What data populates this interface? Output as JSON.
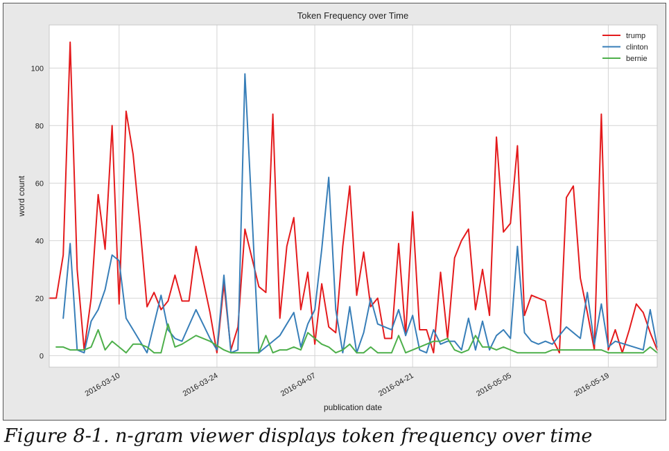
{
  "caption": "Figure 8-1. n-gram viewer displays token frequency over time",
  "chart_data": {
    "type": "line",
    "title": "Token Frequency over Time",
    "xlabel": "publication date",
    "ylabel": "word count",
    "x_start": "2016-02-29",
    "x_end": "2016-05-26",
    "ylim": [
      -4,
      115
    ],
    "yticks": [
      0,
      20,
      40,
      60,
      80,
      100
    ],
    "xticks": [
      {
        "date": "2016-03-10",
        "label": "2016-03-10"
      },
      {
        "date": "2016-03-24",
        "label": "2016-03-24"
      },
      {
        "date": "2016-04-07",
        "label": "2016-04-07"
      },
      {
        "date": "2016-04-21",
        "label": "2016-04-21"
      },
      {
        "date": "2016-05-05",
        "label": "2016-05-05"
      },
      {
        "date": "2016-05-19",
        "label": "2016-05-19"
      }
    ],
    "grid": true,
    "legend": "top-right",
    "series": [
      {
        "name": "trump",
        "color": "#e41a1c",
        "points": [
          [
            "2016-02-29",
            20
          ],
          [
            "2016-03-01",
            20
          ],
          [
            "2016-03-02",
            35
          ],
          [
            "2016-03-03",
            109
          ],
          [
            "2016-03-04",
            30
          ],
          [
            "2016-03-05",
            2
          ],
          [
            "2016-03-06",
            20
          ],
          [
            "2016-03-07",
            56
          ],
          [
            "2016-03-08",
            37
          ],
          [
            "2016-03-09",
            80
          ],
          [
            "2016-03-10",
            18
          ],
          [
            "2016-03-11",
            85
          ],
          [
            "2016-03-12",
            70
          ],
          [
            "2016-03-13",
            45
          ],
          [
            "2016-03-14",
            17
          ],
          [
            "2016-03-15",
            22
          ],
          [
            "2016-03-16",
            16
          ],
          [
            "2016-03-17",
            19
          ],
          [
            "2016-03-18",
            28
          ],
          [
            "2016-03-19",
            19
          ],
          [
            "2016-03-20",
            19
          ],
          [
            "2016-03-21",
            38
          ],
          [
            "2016-03-23",
            15
          ],
          [
            "2016-03-24",
            1
          ],
          [
            "2016-03-25",
            25
          ],
          [
            "2016-03-26",
            2
          ],
          [
            "2016-03-27",
            10
          ],
          [
            "2016-03-28",
            44
          ],
          [
            "2016-03-30",
            24
          ],
          [
            "2016-03-31",
            22
          ],
          [
            "2016-04-01",
            84
          ],
          [
            "2016-04-02",
            13
          ],
          [
            "2016-04-03",
            38
          ],
          [
            "2016-04-04",
            48
          ],
          [
            "2016-04-05",
            16
          ],
          [
            "2016-04-06",
            29
          ],
          [
            "2016-04-07",
            4
          ],
          [
            "2016-04-08",
            25
          ],
          [
            "2016-04-09",
            10
          ],
          [
            "2016-04-10",
            8
          ],
          [
            "2016-04-11",
            38
          ],
          [
            "2016-04-12",
            59
          ],
          [
            "2016-04-13",
            21
          ],
          [
            "2016-04-14",
            36
          ],
          [
            "2016-04-15",
            17
          ],
          [
            "2016-04-16",
            20
          ],
          [
            "2016-04-17",
            6
          ],
          [
            "2016-04-18",
            6
          ],
          [
            "2016-04-19",
            39
          ],
          [
            "2016-04-20",
            7
          ],
          [
            "2016-04-21",
            50
          ],
          [
            "2016-04-22",
            9
          ],
          [
            "2016-04-23",
            9
          ],
          [
            "2016-04-24",
            1
          ],
          [
            "2016-04-25",
            29
          ],
          [
            "2016-04-26",
            6
          ],
          [
            "2016-04-27",
            34
          ],
          [
            "2016-04-28",
            40
          ],
          [
            "2016-04-29",
            44
          ],
          [
            "2016-04-30",
            16
          ],
          [
            "2016-05-01",
            30
          ],
          [
            "2016-05-02",
            14
          ],
          [
            "2016-05-03",
            76
          ],
          [
            "2016-05-04",
            43
          ],
          [
            "2016-05-05",
            46
          ],
          [
            "2016-05-06",
            73
          ],
          [
            "2016-05-07",
            14
          ],
          [
            "2016-05-08",
            21
          ],
          [
            "2016-05-10",
            19
          ],
          [
            "2016-05-11",
            6
          ],
          [
            "2016-05-12",
            1
          ],
          [
            "2016-05-13",
            55
          ],
          [
            "2016-05-14",
            59
          ],
          [
            "2016-05-15",
            27
          ],
          [
            "2016-05-16",
            15
          ],
          [
            "2016-05-17",
            2
          ],
          [
            "2016-05-18",
            84
          ],
          [
            "2016-05-19",
            2
          ],
          [
            "2016-05-20",
            9
          ],
          [
            "2016-05-21",
            1
          ],
          [
            "2016-05-22",
            9
          ],
          [
            "2016-05-23",
            18
          ],
          [
            "2016-05-24",
            15
          ],
          [
            "2016-05-25",
            8
          ],
          [
            "2016-05-26",
            2
          ]
        ]
      },
      {
        "name": "clinton",
        "color": "#377eb8",
        "points": [
          [
            "2016-03-02",
            13
          ],
          [
            "2016-03-03",
            39
          ],
          [
            "2016-03-04",
            2
          ],
          [
            "2016-03-05",
            1
          ],
          [
            "2016-03-06",
            12
          ],
          [
            "2016-03-07",
            16
          ],
          [
            "2016-03-08",
            23
          ],
          [
            "2016-03-09",
            35
          ],
          [
            "2016-03-10",
            33
          ],
          [
            "2016-03-11",
            13
          ],
          [
            "2016-03-12",
            9
          ],
          [
            "2016-03-13",
            5
          ],
          [
            "2016-03-14",
            1
          ],
          [
            "2016-03-15",
            11
          ],
          [
            "2016-03-16",
            21
          ],
          [
            "2016-03-17",
            9
          ],
          [
            "2016-03-18",
            6
          ],
          [
            "2016-03-19",
            5
          ],
          [
            "2016-03-21",
            16
          ],
          [
            "2016-03-22",
            11
          ],
          [
            "2016-03-23",
            6
          ],
          [
            "2016-03-24",
            2
          ],
          [
            "2016-03-25",
            28
          ],
          [
            "2016-03-26",
            1
          ],
          [
            "2016-03-27",
            2
          ],
          [
            "2016-03-28",
            98
          ],
          [
            "2016-03-29",
            50
          ],
          [
            "2016-03-30",
            1
          ],
          [
            "2016-03-31",
            3
          ],
          [
            "2016-04-01",
            5
          ],
          [
            "2016-04-02",
            7
          ],
          [
            "2016-04-03",
            11
          ],
          [
            "2016-04-04",
            15
          ],
          [
            "2016-04-05",
            3
          ],
          [
            "2016-04-06",
            11
          ],
          [
            "2016-04-07",
            16
          ],
          [
            "2016-04-08",
            37
          ],
          [
            "2016-04-09",
            62
          ],
          [
            "2016-04-10",
            16
          ],
          [
            "2016-04-11",
            1
          ],
          [
            "2016-04-12",
            17
          ],
          [
            "2016-04-13",
            1
          ],
          [
            "2016-04-14",
            8
          ],
          [
            "2016-04-15",
            20
          ],
          [
            "2016-04-16",
            11
          ],
          [
            "2016-04-17",
            10
          ],
          [
            "2016-04-18",
            9
          ],
          [
            "2016-04-19",
            16
          ],
          [
            "2016-04-20",
            7
          ],
          [
            "2016-04-21",
            14
          ],
          [
            "2016-04-22",
            2
          ],
          [
            "2016-04-23",
            1
          ],
          [
            "2016-04-24",
            9
          ],
          [
            "2016-04-25",
            4
          ],
          [
            "2016-04-26",
            5
          ],
          [
            "2016-04-27",
            5
          ],
          [
            "2016-04-28",
            2
          ],
          [
            "2016-04-29",
            13
          ],
          [
            "2016-04-30",
            2
          ],
          [
            "2016-05-01",
            12
          ],
          [
            "2016-05-02",
            2
          ],
          [
            "2016-05-03",
            7
          ],
          [
            "2016-05-04",
            9
          ],
          [
            "2016-05-05",
            6
          ],
          [
            "2016-05-06",
            38
          ],
          [
            "2016-05-07",
            8
          ],
          [
            "2016-05-08",
            5
          ],
          [
            "2016-05-09",
            4
          ],
          [
            "2016-05-10",
            5
          ],
          [
            "2016-05-11",
            4
          ],
          [
            "2016-05-12",
            7
          ],
          [
            "2016-05-13",
            10
          ],
          [
            "2016-05-14",
            8
          ],
          [
            "2016-05-15",
            6
          ],
          [
            "2016-05-16",
            22
          ],
          [
            "2016-05-17",
            4
          ],
          [
            "2016-05-18",
            18
          ],
          [
            "2016-05-19",
            3
          ],
          [
            "2016-05-20",
            5
          ],
          [
            "2016-05-24",
            2
          ],
          [
            "2016-05-25",
            16
          ],
          [
            "2016-05-26",
            3
          ]
        ]
      },
      {
        "name": "bernie",
        "color": "#4daf4a",
        "points": [
          [
            "2016-03-01",
            3
          ],
          [
            "2016-03-02",
            3
          ],
          [
            "2016-03-03",
            2
          ],
          [
            "2016-03-04",
            2
          ],
          [
            "2016-03-05",
            2
          ],
          [
            "2016-03-06",
            3
          ],
          [
            "2016-03-07",
            9
          ],
          [
            "2016-03-08",
            2
          ],
          [
            "2016-03-09",
            5
          ],
          [
            "2016-03-10",
            3
          ],
          [
            "2016-03-11",
            1
          ],
          [
            "2016-03-12",
            4
          ],
          [
            "2016-03-13",
            4
          ],
          [
            "2016-03-14",
            3
          ],
          [
            "2016-03-15",
            1
          ],
          [
            "2016-03-16",
            1
          ],
          [
            "2016-03-17",
            11
          ],
          [
            "2016-03-18",
            3
          ],
          [
            "2016-03-19",
            4
          ],
          [
            "2016-03-21",
            7
          ],
          [
            "2016-03-23",
            5
          ],
          [
            "2016-03-25",
            2
          ],
          [
            "2016-03-26",
            1
          ],
          [
            "2016-03-27",
            1
          ],
          [
            "2016-03-28",
            1
          ],
          [
            "2016-03-29",
            1
          ],
          [
            "2016-03-30",
            1
          ],
          [
            "2016-03-31",
            7
          ],
          [
            "2016-04-01",
            1
          ],
          [
            "2016-04-02",
            2
          ],
          [
            "2016-04-03",
            2
          ],
          [
            "2016-04-04",
            3
          ],
          [
            "2016-04-05",
            2
          ],
          [
            "2016-04-06",
            8
          ],
          [
            "2016-04-07",
            6
          ],
          [
            "2016-04-08",
            4
          ],
          [
            "2016-04-09",
            3
          ],
          [
            "2016-04-10",
            1
          ],
          [
            "2016-04-11",
            2
          ],
          [
            "2016-04-12",
            4
          ],
          [
            "2016-04-13",
            1
          ],
          [
            "2016-04-14",
            1
          ],
          [
            "2016-04-15",
            3
          ],
          [
            "2016-04-16",
            1
          ],
          [
            "2016-04-17",
            1
          ],
          [
            "2016-04-18",
            1
          ],
          [
            "2016-04-19",
            7
          ],
          [
            "2016-04-20",
            1
          ],
          [
            "2016-04-21",
            2
          ],
          [
            "2016-04-22",
            3
          ],
          [
            "2016-04-23",
            4
          ],
          [
            "2016-04-24",
            5
          ],
          [
            "2016-04-25",
            5
          ],
          [
            "2016-04-26",
            6
          ],
          [
            "2016-04-27",
            2
          ],
          [
            "2016-04-28",
            1
          ],
          [
            "2016-04-29",
            2
          ],
          [
            "2016-04-30",
            7
          ],
          [
            "2016-05-01",
            3
          ],
          [
            "2016-05-02",
            3
          ],
          [
            "2016-05-03",
            2
          ],
          [
            "2016-05-04",
            3
          ],
          [
            "2016-05-05",
            2
          ],
          [
            "2016-05-06",
            1
          ],
          [
            "2016-05-07",
            1
          ],
          [
            "2016-05-08",
            1
          ],
          [
            "2016-05-09",
            1
          ],
          [
            "2016-05-10",
            1
          ],
          [
            "2016-05-11",
            2
          ],
          [
            "2016-05-12",
            2
          ],
          [
            "2016-05-13",
            2
          ],
          [
            "2016-05-14",
            2
          ],
          [
            "2016-05-15",
            2
          ],
          [
            "2016-05-16",
            2
          ],
          [
            "2016-05-17",
            2
          ],
          [
            "2016-05-18",
            2
          ],
          [
            "2016-05-19",
            1
          ],
          [
            "2016-05-20",
            1
          ],
          [
            "2016-05-21",
            1
          ],
          [
            "2016-05-22",
            1
          ],
          [
            "2016-05-23",
            1
          ],
          [
            "2016-05-24",
            1
          ],
          [
            "2016-05-25",
            3
          ],
          [
            "2016-05-26",
            1
          ]
        ]
      }
    ]
  }
}
